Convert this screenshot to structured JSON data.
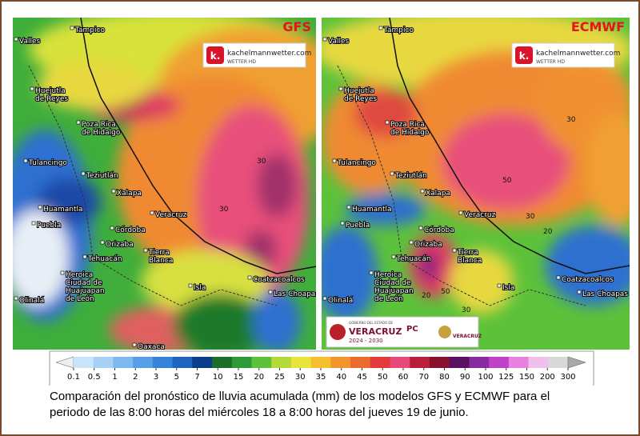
{
  "panels": [
    {
      "model": "GFS",
      "logo": {
        "brand": "kachelmannwetter.com",
        "sub": "WETTER HD",
        "mark": "k."
      },
      "places": [
        [
          "Tampico"
        ],
        [
          "Valles"
        ],
        [
          "Huejutla",
          "de Reyes"
        ],
        [
          "Poza Rica",
          "de Hidalgo"
        ],
        [
          "Tulancingo"
        ],
        [
          "Teziutlán"
        ],
        [
          "Xalapa"
        ],
        [
          "Huamantla"
        ],
        [
          "Puebla"
        ],
        [
          "Córdoba"
        ],
        [
          "Orizaba"
        ],
        [
          "Tehuacán"
        ],
        [
          "Veracruz"
        ],
        [
          "Tierra",
          "Blanca"
        ],
        [
          "Heroica",
          "Ciudad de",
          "Huajuapan",
          "de León"
        ],
        [
          "Isla"
        ],
        [
          "Coatzacoalcos"
        ],
        [
          "Las Choapas"
        ],
        [
          "Olinalá"
        ],
        [
          "Oaxaca"
        ]
      ],
      "contours": [
        30,
        30
      ]
    },
    {
      "model": "ECMWF",
      "logo": {
        "brand": "kachelmannwetter.com",
        "sub": "WETTER HD",
        "mark": "k."
      },
      "places": [
        [
          "Tampico"
        ],
        [
          "Valles"
        ],
        [
          "Huejutla",
          "de Reyes"
        ],
        [
          "Poza Rica",
          "de Hidalgo"
        ],
        [
          "Tulancingo"
        ],
        [
          "Teziutlán"
        ],
        [
          "Xalapa"
        ],
        [
          "Huamantla"
        ],
        [
          "Puebla"
        ],
        [
          "Córdoba"
        ],
        [
          "Orizaba"
        ],
        [
          "Tehuacán"
        ],
        [
          "Veracruz"
        ],
        [
          "Tierra",
          "Blanca"
        ],
        [
          "Heroica",
          "Ciudad de",
          "Huajuapan",
          "de León"
        ],
        [
          "Isla"
        ],
        [
          "Coatzacoalcos"
        ],
        [
          "Las Choapas"
        ],
        [
          "Olinalá"
        ]
      ],
      "contours": [
        30,
        50,
        30,
        20,
        30,
        20,
        50
      ],
      "badge": {
        "top": "GOBIERNO DEL ESTADO DE",
        "state": "VERACRUZ",
        "years": "2024 - 2030",
        "pc": "PC",
        "right": "VERACRUZ"
      }
    }
  ],
  "colorbar": {
    "labels": [
      0.1,
      0.5,
      1,
      2,
      3,
      5,
      7,
      10,
      15,
      20,
      25,
      30,
      35,
      40,
      45,
      50,
      60,
      70,
      80,
      90,
      100,
      125,
      150,
      200,
      300
    ],
    "colors": [
      "#eeeeee",
      "#c8e4fb",
      "#a6d0f5",
      "#7db8ee",
      "#569fe6",
      "#3583d8",
      "#1f63c0",
      "#0b3d8c",
      "#1a6e2a",
      "#2e9a36",
      "#5cc23a",
      "#b4da3a",
      "#e8e43a",
      "#f5c030",
      "#f2952c",
      "#ec6a2c",
      "#e23a3a",
      "#e84a7a",
      "#b8203a",
      "#8a1030",
      "#5a1060",
      "#8a2aa0",
      "#c040c8",
      "#e880e0",
      "#f0c0ec",
      "#d8d8d8",
      "#a8a8a8"
    ]
  },
  "caption": [
    "Comparación del pronóstico de lluvia acumulada (mm) de los modelos GFS y ECMWF para el",
    "periodo de las 8:00 horas del miércoles 18 a 8:00 horas del jueves 19 de junio."
  ]
}
